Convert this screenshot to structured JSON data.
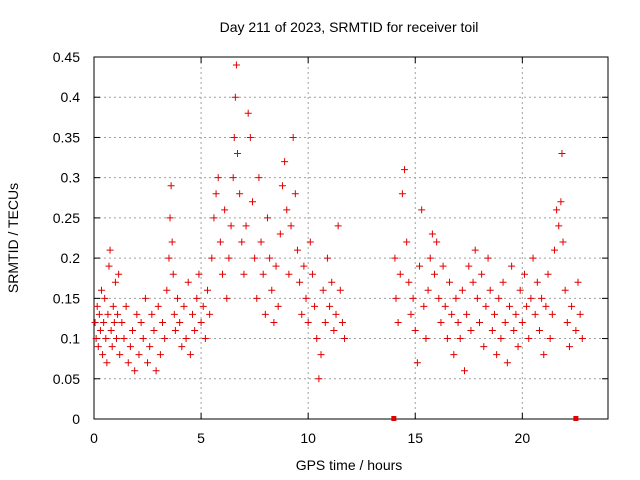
{
  "chart_data": {
    "type": "scatter",
    "title": "Day 211 of 2023, SRMTID for receiver toil",
    "xlabel": "GPS time / hours",
    "ylabel": "SRMTID / TECUs",
    "xlim": [
      0,
      24
    ],
    "ylim": [
      0,
      0.45
    ],
    "x_ticks": [
      "0",
      "5",
      "10",
      "15",
      "20"
    ],
    "y_ticks": [
      "0",
      "0.05",
      "0.1",
      "0.15",
      "0.2",
      "0.25",
      "0.3",
      "0.35",
      "0.4",
      "0.45"
    ],
    "x_tick_values": [
      0,
      5,
      10,
      15,
      20
    ],
    "y_tick_values": [
      0,
      0.05,
      0.1,
      0.15,
      0.2,
      0.25,
      0.3,
      0.35,
      0.4,
      0.45
    ],
    "grid": true,
    "marker": "plus",
    "color": "#e00000",
    "series": [
      {
        "points": [
          [
            0.05,
            0.12
          ],
          [
            0.1,
            0.1
          ],
          [
            0.15,
            0.14
          ],
          [
            0.2,
            0.09
          ],
          [
            0.25,
            0.13
          ],
          [
            0.3,
            0.11
          ],
          [
            0.35,
            0.16
          ],
          [
            0.4,
            0.08
          ],
          [
            0.45,
            0.12
          ],
          [
            0.5,
            0.15
          ],
          [
            0.55,
            0.1
          ],
          [
            0.6,
            0.07
          ],
          [
            0.65,
            0.13
          ],
          [
            0.7,
            0.19
          ],
          [
            0.75,
            0.21
          ],
          [
            0.8,
            0.11
          ],
          [
            0.85,
            0.09
          ],
          [
            0.9,
            0.14
          ],
          [
            0.95,
            0.12
          ],
          [
            1.0,
            0.17
          ],
          [
            1.05,
            0.1
          ],
          [
            1.1,
            0.13
          ],
          [
            1.15,
            0.18
          ],
          [
            1.2,
            0.08
          ],
          [
            1.3,
            0.12
          ],
          [
            1.4,
            0.1
          ],
          [
            1.5,
            0.14
          ],
          [
            1.6,
            0.07
          ],
          [
            1.7,
            0.09
          ],
          [
            1.8,
            0.11
          ],
          [
            1.9,
            0.06
          ],
          [
            2.0,
            0.13
          ],
          [
            2.1,
            0.08
          ],
          [
            2.2,
            0.12
          ],
          [
            2.3,
            0.1
          ],
          [
            2.4,
            0.15
          ],
          [
            2.5,
            0.07
          ],
          [
            2.6,
            0.09
          ],
          [
            2.7,
            0.13
          ],
          [
            2.8,
            0.11
          ],
          [
            2.9,
            0.06
          ],
          [
            3.0,
            0.14
          ],
          [
            3.1,
            0.08
          ],
          [
            3.2,
            0.12
          ],
          [
            3.3,
            0.1
          ],
          [
            3.4,
            0.16
          ],
          [
            3.5,
            0.2
          ],
          [
            3.55,
            0.25
          ],
          [
            3.6,
            0.29
          ],
          [
            3.65,
            0.22
          ],
          [
            3.7,
            0.18
          ],
          [
            3.75,
            0.13
          ],
          [
            3.8,
            0.11
          ],
          [
            3.9,
            0.15
          ],
          [
            4.0,
            0.12
          ],
          [
            4.1,
            0.09
          ],
          [
            4.2,
            0.14
          ],
          [
            4.3,
            0.1
          ],
          [
            4.4,
            0.17
          ],
          [
            4.5,
            0.08
          ],
          [
            4.6,
            0.13
          ],
          [
            4.7,
            0.11
          ],
          [
            4.8,
            0.15
          ],
          [
            4.9,
            0.18
          ],
          [
            5.0,
            0.12
          ],
          [
            5.1,
            0.14
          ],
          [
            5.2,
            0.1
          ],
          [
            5.3,
            0.16
          ],
          [
            5.4,
            0.13
          ],
          [
            5.5,
            0.2
          ],
          [
            5.6,
            0.25
          ],
          [
            5.7,
            0.28
          ],
          [
            5.8,
            0.3
          ],
          [
            5.9,
            0.22
          ],
          [
            6.0,
            0.18
          ],
          [
            6.1,
            0.26
          ],
          [
            6.2,
            0.15
          ],
          [
            6.3,
            0.2
          ],
          [
            6.4,
            0.24
          ],
          [
            6.5,
            0.3
          ],
          [
            6.55,
            0.35
          ],
          [
            6.6,
            0.4
          ],
          [
            6.65,
            0.44
          ],
          [
            6.7,
            0.33
          ],
          [
            6.8,
            0.28
          ],
          [
            6.9,
            0.22
          ],
          [
            7.0,
            0.18
          ],
          [
            7.1,
            0.24
          ],
          [
            7.2,
            0.38
          ],
          [
            7.3,
            0.35
          ],
          [
            7.4,
            0.27
          ],
          [
            7.5,
            0.2
          ],
          [
            7.6,
            0.15
          ],
          [
            7.7,
            0.3
          ],
          [
            7.8,
            0.22
          ],
          [
            7.9,
            0.18
          ],
          [
            8.0,
            0.13
          ],
          [
            8.1,
            0.25
          ],
          [
            8.2,
            0.2
          ],
          [
            8.3,
            0.16
          ],
          [
            8.4,
            0.12
          ],
          [
            8.5,
            0.19
          ],
          [
            8.6,
            0.14
          ],
          [
            8.7,
            0.23
          ],
          [
            8.8,
            0.29
          ],
          [
            8.9,
            0.32
          ],
          [
            9.0,
            0.26
          ],
          [
            9.1,
            0.18
          ],
          [
            9.2,
            0.24
          ],
          [
            9.3,
            0.35
          ],
          [
            9.4,
            0.28
          ],
          [
            9.5,
            0.21
          ],
          [
            9.6,
            0.17
          ],
          [
            9.7,
            0.13
          ],
          [
            9.8,
            0.19
          ],
          [
            9.9,
            0.15
          ],
          [
            10.0,
            0.12
          ],
          [
            10.1,
            0.22
          ],
          [
            10.2,
            0.18
          ],
          [
            10.3,
            0.14
          ],
          [
            10.4,
            0.1
          ],
          [
            10.5,
            0.05
          ],
          [
            10.6,
            0.08
          ],
          [
            10.7,
            0.16
          ],
          [
            10.8,
            0.12
          ],
          [
            10.9,
            0.2
          ],
          [
            11.0,
            0.14
          ],
          [
            11.1,
            0.17
          ],
          [
            11.2,
            0.11
          ],
          [
            11.3,
            0.13
          ],
          [
            11.4,
            0.24
          ],
          [
            11.5,
            0.16
          ],
          [
            11.6,
            0.12
          ],
          [
            11.7,
            0.1
          ],
          [
            14.05,
            0.2
          ],
          [
            14.1,
            0.15
          ],
          [
            14.2,
            0.12
          ],
          [
            14.3,
            0.18
          ],
          [
            14.4,
            0.28
          ],
          [
            14.5,
            0.31
          ],
          [
            14.6,
            0.22
          ],
          [
            14.7,
            0.17
          ],
          [
            14.8,
            0.13
          ],
          [
            14.9,
            0.15
          ],
          [
            15.0,
            0.11
          ],
          [
            15.1,
            0.07
          ],
          [
            15.2,
            0.19
          ],
          [
            15.3,
            0.26
          ],
          [
            15.4,
            0.14
          ],
          [
            15.5,
            0.1
          ],
          [
            15.6,
            0.16
          ],
          [
            15.7,
            0.2
          ],
          [
            15.8,
            0.23
          ],
          [
            15.9,
            0.18
          ],
          [
            16.0,
            0.22
          ],
          [
            16.1,
            0.15
          ],
          [
            16.2,
            0.12
          ],
          [
            16.3,
            0.19
          ],
          [
            16.4,
            0.14
          ],
          [
            16.5,
            0.1
          ],
          [
            16.6,
            0.17
          ],
          [
            16.7,
            0.13
          ],
          [
            16.8,
            0.08
          ],
          [
            16.9,
            0.15
          ],
          [
            17.0,
            0.12
          ],
          [
            17.1,
            0.1
          ],
          [
            17.2,
            0.16
          ],
          [
            17.3,
            0.06
          ],
          [
            17.4,
            0.13
          ],
          [
            17.5,
            0.19
          ],
          [
            17.6,
            0.11
          ],
          [
            17.7,
            0.17
          ],
          [
            17.8,
            0.21
          ],
          [
            17.9,
            0.15
          ],
          [
            18.0,
            0.12
          ],
          [
            18.1,
            0.18
          ],
          [
            18.2,
            0.09
          ],
          [
            18.3,
            0.14
          ],
          [
            18.4,
            0.2
          ],
          [
            18.5,
            0.16
          ],
          [
            18.6,
            0.11
          ],
          [
            18.7,
            0.13
          ],
          [
            18.8,
            0.08
          ],
          [
            18.9,
            0.15
          ],
          [
            19.0,
            0.1
          ],
          [
            19.1,
            0.17
          ],
          [
            19.2,
            0.12
          ],
          [
            19.3,
            0.07
          ],
          [
            19.4,
            0.14
          ],
          [
            19.5,
            0.19
          ],
          [
            19.6,
            0.11
          ],
          [
            19.7,
            0.13
          ],
          [
            19.8,
            0.09
          ],
          [
            19.9,
            0.16
          ],
          [
            20.0,
            0.12
          ],
          [
            20.1,
            0.18
          ],
          [
            20.2,
            0.14
          ],
          [
            20.3,
            0.1
          ],
          [
            20.4,
            0.15
          ],
          [
            20.5,
            0.2
          ],
          [
            20.6,
            0.13
          ],
          [
            20.7,
            0.17
          ],
          [
            20.8,
            0.11
          ],
          [
            20.9,
            0.15
          ],
          [
            21.0,
            0.08
          ],
          [
            21.1,
            0.14
          ],
          [
            21.2,
            0.18
          ],
          [
            21.3,
            0.1
          ],
          [
            21.4,
            0.13
          ],
          [
            21.5,
            0.21
          ],
          [
            21.6,
            0.26
          ],
          [
            21.7,
            0.24
          ],
          [
            21.8,
            0.27
          ],
          [
            21.85,
            0.33
          ],
          [
            21.9,
            0.22
          ],
          [
            22.0,
            0.16
          ],
          [
            22.1,
            0.12
          ],
          [
            22.2,
            0.09
          ],
          [
            22.3,
            0.14
          ],
          [
            22.5,
            0.11
          ],
          [
            22.6,
            0.17
          ],
          [
            22.7,
            0.13
          ],
          [
            22.8,
            0.1
          ]
        ]
      }
    ],
    "zero_markers": [
      [
        14.0,
        0.0
      ],
      [
        22.5,
        0.0
      ]
    ]
  }
}
